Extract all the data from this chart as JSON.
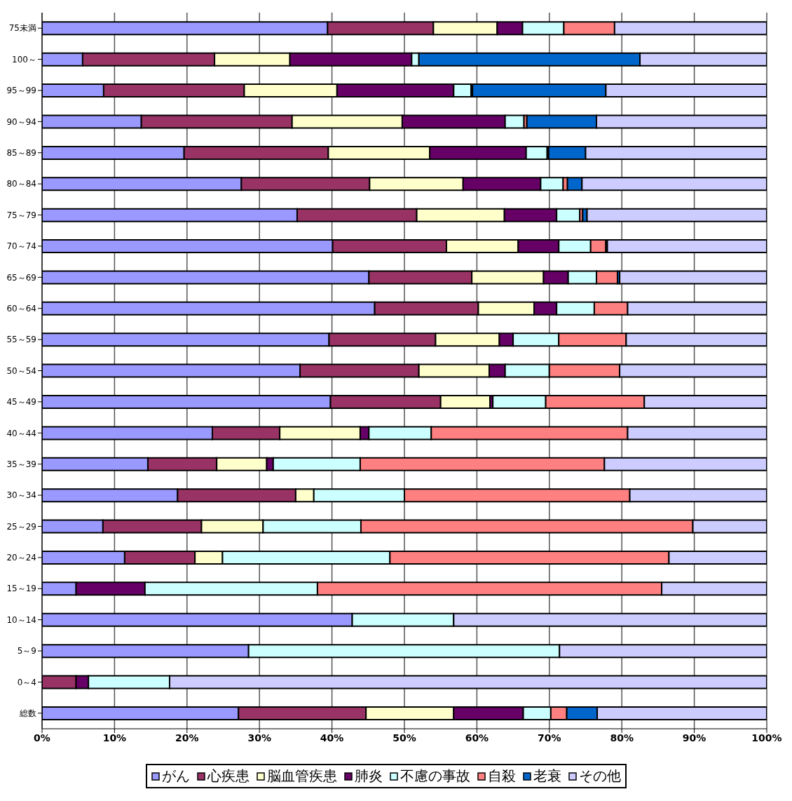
{
  "chart_data": {
    "type": "bar",
    "orientation": "horizontal",
    "stacked": true,
    "grid": "x",
    "legend": "bottom",
    "categories": [
      "75未満",
      "100～",
      "95～99",
      "90～94",
      "85～89",
      "80～84",
      "75～79",
      "70～74",
      "65～69",
      "60～64",
      "55～59",
      "50～54",
      "45～49",
      "40～44",
      "35～39",
      "30～34",
      "25～29",
      "20～24",
      "15～19",
      "10～14",
      "5～9",
      "0～4",
      "総数"
    ],
    "xlim": [
      0,
      100
    ],
    "xticks": [
      {
        "value": 0,
        "label": "0%"
      },
      {
        "value": 10,
        "label": "10%"
      },
      {
        "value": 20,
        "label": "20%"
      },
      {
        "value": 30,
        "label": "30%"
      },
      {
        "value": 40,
        "label": "40%"
      },
      {
        "value": 50,
        "label": "50%"
      },
      {
        "value": 60,
        "label": "60%"
      },
      {
        "value": 70,
        "label": "70%"
      },
      {
        "value": 80,
        "label": "80%"
      },
      {
        "value": 90,
        "label": "90%"
      },
      {
        "value": 100,
        "label": "100%"
      }
    ],
    "series": [
      {
        "name": "がん",
        "color": "#9999ff",
        "values": [
          39.4,
          5.6,
          8.5,
          13.7,
          19.6,
          27.5,
          35.2,
          40.1,
          45.1,
          45.9,
          39.6,
          35.6,
          39.8,
          23.5,
          14.6,
          18.7,
          8.4,
          11.4,
          4.7,
          42.8,
          28.5,
          0,
          27.1
        ]
      },
      {
        "name": "心疾患",
        "color": "#993366",
        "values": [
          14.6,
          18.2,
          19.4,
          20.8,
          19.9,
          17.7,
          16.5,
          15.7,
          14.2,
          14.3,
          14.7,
          16.4,
          15.2,
          9.3,
          9.5,
          16.3,
          13.6,
          9.7,
          0,
          0,
          0,
          4.7,
          17.6
        ]
      },
      {
        "name": "脳血管疾患",
        "color": "#ffffcc",
        "values": [
          8.8,
          10.4,
          12.8,
          15.2,
          14.0,
          12.9,
          12.1,
          9.9,
          9.9,
          7.7,
          8.8,
          9.7,
          6.8,
          11.1,
          6.9,
          2.5,
          8.5,
          3.8,
          0,
          0,
          0,
          0,
          12.1
        ]
      },
      {
        "name": "肺炎",
        "color": "#660066",
        "values": [
          3.5,
          16.8,
          16.1,
          14.2,
          13.3,
          10.7,
          7.2,
          5.6,
          3.4,
          3.1,
          1.9,
          2.2,
          0.4,
          1.2,
          0.9,
          0,
          0,
          0,
          9.5,
          0,
          0,
          1.7,
          9.6
        ]
      },
      {
        "name": "不慮の事故",
        "color": "#ccffff",
        "values": [
          5.7,
          1.0,
          2.4,
          2.6,
          2.9,
          3.1,
          3.2,
          4.4,
          3.9,
          5.2,
          6.3,
          6.1,
          7.3,
          8.6,
          12.0,
          12.5,
          13.5,
          23.1,
          23.8,
          14.0,
          42.9,
          11.2,
          3.8
        ]
      },
      {
        "name": "自殺",
        "color": "#ff8080",
        "values": [
          7.0,
          0,
          0.2,
          0.4,
          0.2,
          0.6,
          0.4,
          2.1,
          2.9,
          4.6,
          9.3,
          9.7,
          13.6,
          27.1,
          33.7,
          31.1,
          45.8,
          38.5,
          47.5,
          0,
          0,
          0,
          2.2
        ]
      },
      {
        "name": "老衰",
        "color": "#0066cc",
        "values": [
          0,
          30.5,
          18.4,
          9.6,
          5.1,
          2.0,
          0.6,
          0.2,
          0.3,
          0,
          0,
          0,
          0,
          0,
          0,
          0,
          0,
          0,
          0,
          0,
          0,
          0,
          4.2
        ]
      },
      {
        "name": "その他",
        "color": "#ccccff",
        "values": [
          21.0,
          17.5,
          22.2,
          23.5,
          25.0,
          25.5,
          24.8,
          22.0,
          20.3,
          19.2,
          19.4,
          20.3,
          16.9,
          19.2,
          22.4,
          18.9,
          10.2,
          13.5,
          14.5,
          43.2,
          28.6,
          82.4,
          23.4
        ]
      }
    ]
  }
}
